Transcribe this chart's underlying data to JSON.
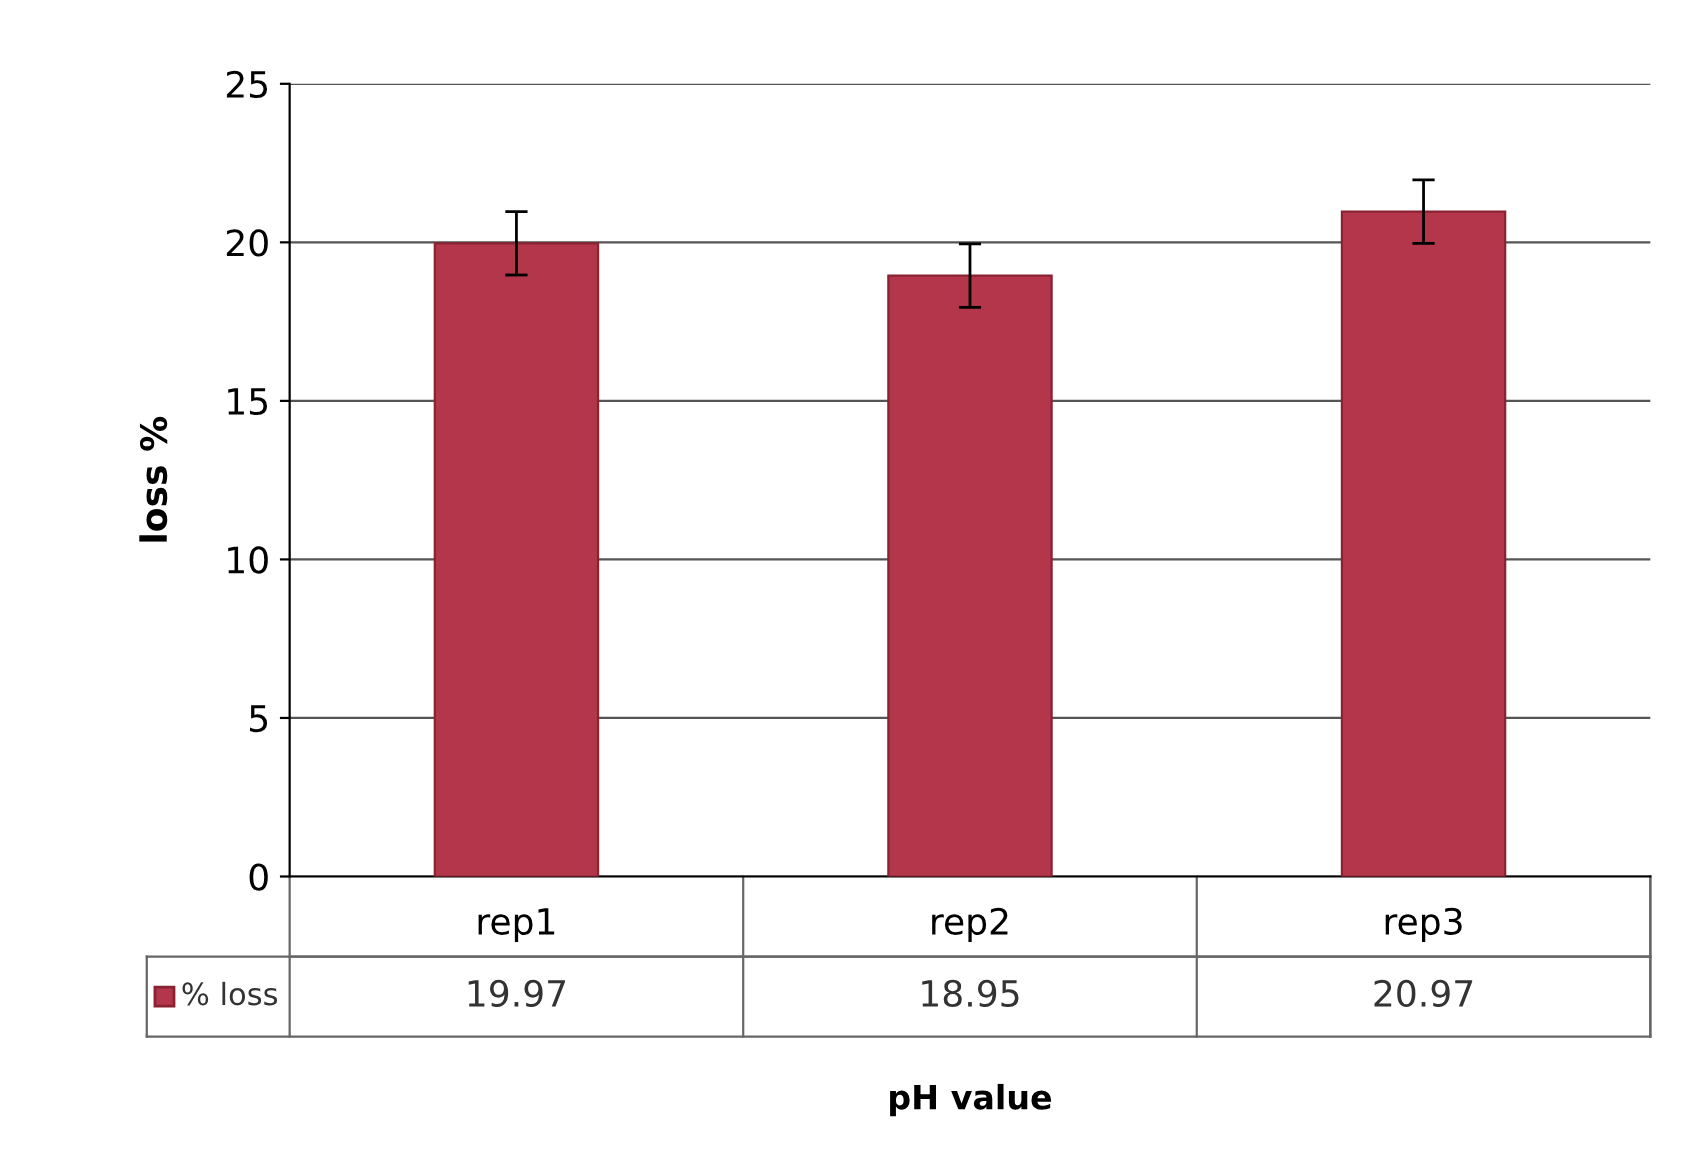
{
  "chart_data": {
    "type": "bar",
    "ylabel": "loss %",
    "xlabel": "pH value",
    "categories": [
      "rep1",
      "rep2",
      "rep3"
    ],
    "series": [
      {
        "name": "% loss",
        "color": "#b3364a",
        "values": [
          19.97,
          18.95,
          20.97
        ],
        "errors": [
          1,
          1,
          1
        ]
      }
    ],
    "ylim": [
      0,
      25
    ],
    "yticks": [
      0,
      5,
      10,
      15,
      20,
      25
    ],
    "grid": "y",
    "data_labels": true,
    "legend": "bottom"
  }
}
